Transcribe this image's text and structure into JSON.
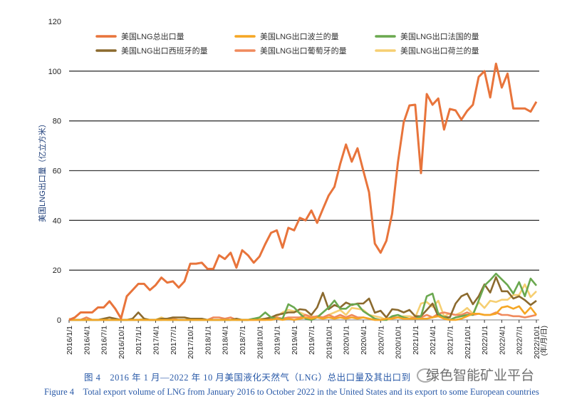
{
  "chart_data": {
    "type": "line",
    "title": "",
    "xlabel": "(年/月/日)",
    "ylabel": "美国LNG出口量（亿立方米）",
    "ylim": [
      0,
      120
    ],
    "yticks": [
      0,
      20,
      40,
      60,
      80,
      100,
      120
    ],
    "grid": "horizontal",
    "legend_placement": "top",
    "x_start": "2016/1",
    "x_end": "2022/10",
    "x_count": 82,
    "xtick_labels": [
      "2016/1/1",
      "2016/4/1",
      "2016/7/1",
      "2016/10/1",
      "2017/1/1",
      "2017/4/1",
      "2017/7/1",
      "2017/10/1",
      "2018/1/1",
      "2018/4/1",
      "2018/7/1",
      "2018/10/1",
      "2019/1/1",
      "2019/4/1",
      "2019/7/1",
      "2019/10/1",
      "2020/1/1",
      "2020/4/1",
      "2020/7/1",
      "2020/10/1",
      "2021/1/1",
      "2021/4/1",
      "2021/7/1",
      "2021/10/1",
      "2022/1/1",
      "2022/4/1",
      "2022/7/1",
      "2022/10/1"
    ],
    "series": [
      {
        "name": "美国LNG总出口量",
        "color": "#E8743B",
        "values": [
          0,
          1,
          3,
          3,
          3,
          5,
          5,
          7.5,
          4.5,
          0.6,
          9.5,
          12,
          14.5,
          14.5,
          12,
          14,
          17,
          15,
          15.5,
          13,
          15.5,
          22.6,
          22.6,
          23,
          20.5,
          20.5,
          26,
          24.5,
          27,
          21,
          28,
          26,
          23,
          25.5,
          30.5,
          35,
          36,
          29,
          37,
          36,
          41,
          40,
          44,
          39,
          44.6,
          50,
          53.5,
          62.7,
          70.5,
          63.6,
          69,
          60,
          51.3,
          30.7,
          27,
          31.8,
          42.7,
          63.3,
          79.4,
          86.2,
          86.5,
          59,
          90.8,
          86.5,
          89,
          76.5,
          84.8,
          84.2,
          80.5,
          84,
          86.5,
          97.7,
          100,
          89.4,
          103,
          93.4,
          99,
          85,
          85,
          85,
          83.7,
          87.7
        ]
      },
      {
        "name": "美国LNG出口波兰的量",
        "color": "#F5A623",
        "values": [
          0,
          0,
          0,
          0,
          0,
          0,
          0,
          0,
          0,
          0,
          0,
          0,
          0,
          0,
          0,
          0,
          0,
          0,
          0,
          0,
          0,
          0,
          0,
          0,
          0,
          0,
          0,
          0,
          0,
          0,
          0,
          0,
          0,
          0,
          0,
          0,
          0.5,
          0,
          0.5,
          0,
          0.5,
          1,
          0.5,
          1,
          0.5,
          1,
          0.5,
          1,
          0.5,
          1,
          0.5,
          1,
          0.5,
          0,
          0,
          0.5,
          0.5,
          1,
          0.5,
          0.5,
          0.5,
          0.5,
          0.5,
          1,
          1.5,
          0.5,
          0,
          0,
          0.5,
          1.5,
          2.5,
          2.5,
          2,
          2,
          2.5,
          5,
          5.5,
          4.5,
          5.5,
          2.5,
          5,
          2
        ]
      },
      {
        "name": "美国LNG出口法国的量",
        "color": "#6AA84F",
        "values": [
          0,
          0,
          0,
          0,
          0,
          0,
          0,
          0,
          0,
          0,
          0,
          0,
          0,
          0,
          0,
          0,
          0,
          0,
          0,
          0,
          0,
          0,
          0,
          0,
          0,
          0,
          0,
          0,
          0,
          0,
          0,
          0,
          0.5,
          1,
          3,
          1,
          0.5,
          0.5,
          6.3,
          5,
          2.5,
          0.5,
          0,
          1,
          3,
          5,
          7.8,
          4.5,
          4.5,
          6.3,
          6.3,
          3.5,
          2,
          0.5,
          0,
          0,
          1.5,
          2,
          1,
          0.5,
          0.5,
          1.5,
          9.5,
          10.6,
          2.5,
          1,
          0,
          1,
          1.5,
          2,
          2,
          7.8,
          13.8,
          16,
          18.6,
          16.3,
          14,
          10.6,
          15.2,
          9.5,
          16.6,
          13.8
        ]
      },
      {
        "name": "美国LNG出口西班牙的量",
        "color": "#8B6A2E",
        "values": [
          0,
          0,
          0,
          0,
          0,
          0,
          0.5,
          1,
          0.5,
          0,
          0,
          0.5,
          3,
          0.5,
          0,
          0,
          0.5,
          0.5,
          1,
          1,
          1,
          0.5,
          0.5,
          0.5,
          0,
          0,
          0,
          0,
          0,
          0.5,
          0,
          0,
          0.5,
          0,
          0.5,
          1,
          2,
          2.5,
          3,
          3,
          4.3,
          4,
          2,
          5,
          10.9,
          4.3,
          6,
          5,
          7,
          6,
          6.6,
          6.6,
          8.6,
          2.9,
          3.7,
          1,
          4.3,
          4,
          3,
          4,
          1.5,
          1.5,
          4,
          6.6,
          1.5,
          1.2,
          1,
          6.6,
          9.5,
          10.6,
          6.3,
          9.5,
          14.3,
          11,
          17.2,
          11.5,
          11.5,
          8.6,
          9.5,
          8,
          6,
          7.7
        ]
      },
      {
        "name": "美国LNG出口葡萄牙的量",
        "color": "#F08A5D",
        "values": [
          0,
          0,
          0,
          1,
          0,
          0,
          0,
          0,
          0,
          0,
          0,
          0,
          0,
          0,
          0,
          0,
          0,
          0.5,
          0.5,
          0,
          0,
          0,
          0,
          0,
          0,
          1,
          1,
          0.5,
          1,
          0,
          0,
          0,
          0,
          0,
          0,
          0.5,
          1,
          0.5,
          1,
          1,
          1,
          2,
          1,
          1.5,
          1,
          2,
          1,
          2,
          1,
          2,
          1,
          1,
          0.5,
          0,
          0,
          0.5,
          1,
          1,
          0.5,
          0.5,
          1,
          1,
          2,
          1,
          2.5,
          3,
          2.5,
          2,
          2,
          3,
          2,
          2.5,
          2,
          2,
          3,
          2,
          2,
          1.5,
          1.5,
          1,
          1.5,
          2
        ]
      },
      {
        "name": "美国LNG出口荷兰的量",
        "color": "#F6CF72",
        "values": [
          0.5,
          0,
          0,
          0,
          0,
          0,
          0,
          0,
          0,
          0,
          0,
          0,
          0,
          0.5,
          0,
          0,
          1,
          0,
          0,
          0,
          0,
          0,
          0,
          0,
          0,
          0,
          0,
          0,
          0,
          0,
          0,
          0,
          0,
          0.5,
          0.5,
          1,
          1.5,
          3,
          4,
          3.5,
          3,
          2,
          1.5,
          1,
          0.5,
          2,
          3,
          4,
          2,
          4.8,
          4.5,
          4,
          2,
          1.5,
          1,
          0,
          0.5,
          1,
          1.5,
          1.5,
          1,
          6.6,
          7.2,
          5.2,
          7.7,
          1.5,
          2.5,
          2,
          3,
          4.8,
          2.5,
          7.2,
          4.8,
          7.7,
          7.2,
          8.1,
          8.1,
          10,
          10,
          14.3,
          9.2,
          11.5
        ]
      }
    ]
  },
  "caption": {
    "cn": "图 4　2016 年 1 月—2022 年 10 月美国液化天然气（LNG）总出口量及其出口到",
    "en": "Figure 4　Total export volume of LNG from January 2016 to October 2022 in the United States and its export to  some European countries"
  },
  "watermark": "绿色智能矿业平台"
}
